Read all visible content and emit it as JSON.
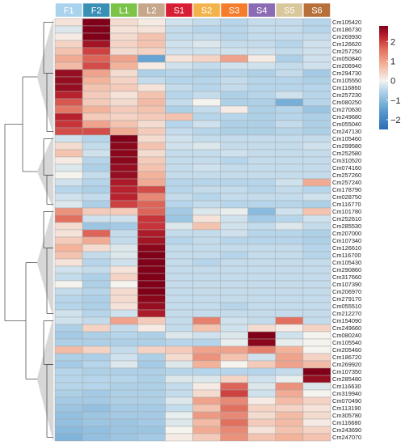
{
  "chart_data": {
    "type": "heatmap",
    "title": "",
    "columns": [
      "F1",
      "F2",
      "L1",
      "L2",
      "S1",
      "S2",
      "S3",
      "S4",
      "S5",
      "S6"
    ],
    "group_colors": [
      "#a9d3ec",
      "#3a8fb5",
      "#7cc34a",
      "#c7a78c",
      "#d81e35",
      "#f2b24c",
      "#f47c2a",
      "#8b6bb3",
      "#d8c79a",
      "#b8703a"
    ],
    "rows": [
      "Cm105420",
      "Cm186730",
      "Cm269930",
      "Cm126620",
      "Cm257250",
      "Cm050840",
      "Cm206940",
      "Cm294730",
      "Cm105550",
      "Cm116860",
      "Cm257230",
      "Cm080250",
      "Cm270630",
      "Cm249680",
      "Cm055040",
      "Cm247130",
      "Cm105460",
      "Cm299580",
      "Cm252580",
      "Cm310520",
      "Cm074160",
      "Cm257260",
      "Cm257240",
      "Cm178790",
      "Cm028750",
      "Cm116770",
      "Cm101780",
      "Cm252610",
      "Cm285530",
      "Cm207000",
      "Cm107340",
      "Cm126610",
      "Cm116700",
      "Cm105430",
      "Cm290860",
      "Cm317660",
      "Cm107390",
      "Cm206970",
      "Cm279170",
      "Cm055510",
      "Cm212270",
      "Cm154090",
      "Cm249660",
      "Cm080240",
      "Cm105540",
      "Cm205460",
      "Cm186720",
      "Cm269920",
      "Cm107350",
      "Cm285480",
      "Cm116630",
      "Cm319940",
      "Cm070490",
      "Cm113190",
      "Cm305780",
      "Cm116680",
      "Cm243690",
      "Cm247070"
    ],
    "values": [
      [
        0.2,
        2.8,
        0.3,
        0.1,
        -0.3,
        -0.4,
        -0.5,
        -0.4,
        -0.4,
        -0.5
      ],
      [
        -0.2,
        2.8,
        0.2,
        0.2,
        -0.4,
        -0.5,
        -0.5,
        -0.4,
        -0.4,
        -0.5
      ],
      [
        0.1,
        2.8,
        0.3,
        0.6,
        -0.4,
        -0.4,
        -0.5,
        -0.4,
        -0.4,
        -0.4
      ],
      [
        0.4,
        2.5,
        0.4,
        0.6,
        -0.3,
        -0.2,
        -0.4,
        -0.4,
        -0.5,
        -0.3
      ],
      [
        0.6,
        2.0,
        0.3,
        0.4,
        -0.3,
        -0.3,
        -0.3,
        -0.3,
        -0.4,
        -0.3
      ],
      [
        0.9,
        1.7,
        1.0,
        -1.4,
        0.2,
        0.4,
        1.0,
        0.1,
        -0.6,
        -0.3
      ],
      [
        0.7,
        1.9,
        0.8,
        0.1,
        -0.3,
        -0.4,
        -0.3,
        -0.3,
        -0.4,
        -0.3
      ],
      [
        2.6,
        1.0,
        0.3,
        -0.6,
        -0.5,
        -0.6,
        -0.5,
        -0.6,
        -0.4,
        -0.7
      ],
      [
        2.6,
        0.8,
        0.4,
        -0.4,
        -0.5,
        -0.5,
        -0.4,
        -0.5,
        -0.5,
        -0.6
      ],
      [
        2.6,
        0.6,
        0.5,
        0.2,
        -0.4,
        -0.5,
        -0.4,
        -0.5,
        -0.5,
        -0.5
      ],
      [
        2.3,
        0.5,
        0.2,
        0.6,
        -0.5,
        -0.4,
        -0.6,
        -0.5,
        -0.3,
        -0.5
      ],
      [
        1.8,
        0.5,
        0.3,
        0.7,
        -0.4,
        0.0,
        -0.6,
        -0.6,
        -1.2,
        -0.5
      ],
      [
        1.5,
        0.8,
        0.5,
        0.6,
        -0.6,
        -0.4,
        0.1,
        -0.6,
        -0.5,
        -0.8
      ],
      [
        2.3,
        0.5,
        0.4,
        0.5,
        0.6,
        -0.5,
        -0.5,
        -0.6,
        -0.5,
        -0.6
      ],
      [
        2.1,
        1.0,
        0.6,
        0.3,
        -0.5,
        -0.3,
        -0.6,
        -0.6,
        -0.4,
        -0.6
      ],
      [
        1.9,
        1.9,
        0.9,
        0.5,
        -0.4,
        -0.5,
        -0.6,
        -0.6,
        -0.5,
        -0.6
      ],
      [
        -0.3,
        -0.5,
        2.8,
        0.3,
        -0.3,
        -0.4,
        -0.4,
        -0.4,
        -0.4,
        -0.4
      ],
      [
        0.3,
        -0.4,
        2.7,
        0.6,
        -0.3,
        -0.2,
        -0.4,
        -0.4,
        -0.4,
        -0.3
      ],
      [
        0.6,
        -0.3,
        2.7,
        0.3,
        -0.4,
        -0.4,
        -0.3,
        -0.4,
        -0.4,
        -0.4
      ],
      [
        0.1,
        -0.5,
        2.7,
        0.5,
        -0.4,
        -0.4,
        -0.5,
        -0.4,
        -0.4,
        -0.4
      ],
      [
        -0.2,
        -0.6,
        2.6,
        0.6,
        -0.4,
        -0.3,
        -0.4,
        -0.4,
        -0.4,
        -0.4
      ],
      [
        0.0,
        -0.4,
        2.6,
        0.8,
        -0.4,
        -0.4,
        -0.4,
        -0.4,
        -0.4,
        -0.4
      ],
      [
        -0.3,
        -0.5,
        2.4,
        0.9,
        -0.5,
        -0.5,
        -0.5,
        -0.5,
        -0.3,
        0.9
      ],
      [
        -0.5,
        -0.6,
        2.3,
        1.9,
        -0.5,
        -0.4,
        -0.4,
        -0.5,
        -0.4,
        -0.5
      ],
      [
        -0.3,
        -0.4,
        2.3,
        1.3,
        -0.4,
        -0.5,
        -0.4,
        -0.4,
        -0.4,
        -0.3
      ],
      [
        -0.2,
        -0.6,
        2.0,
        1.7,
        -0.5,
        -0.4,
        -0.5,
        -0.5,
        -0.5,
        -0.6
      ],
      [
        1.2,
        0.5,
        0.5,
        1.7,
        -0.7,
        -0.2,
        -0.1,
        -1.0,
        -0.3,
        0.6
      ],
      [
        1.6,
        -0.3,
        -0.3,
        2.1,
        -0.8,
        0.2,
        -0.3,
        -0.7,
        -0.5,
        -0.3
      ],
      [
        0.3,
        -0.8,
        -0.7,
        2.1,
        -0.2,
        0.6,
        -0.3,
        -0.4,
        -0.2,
        -0.4
      ],
      [
        0.2,
        1.7,
        -0.4,
        2.4,
        -0.4,
        -0.4,
        -0.3,
        -0.5,
        -0.5,
        -0.6
      ],
      [
        0.5,
        0.9,
        -0.4,
        2.5,
        -0.5,
        -0.4,
        -0.5,
        -0.5,
        -0.5,
        -0.6
      ],
      [
        0.8,
        0.3,
        -0.2,
        2.7,
        -0.4,
        -0.4,
        -0.4,
        -0.4,
        -0.4,
        -0.5
      ],
      [
        0.6,
        -0.4,
        -0.2,
        2.8,
        -0.4,
        -0.4,
        -0.5,
        -0.4,
        -0.4,
        -0.5
      ],
      [
        0.2,
        -0.5,
        -0.3,
        2.8,
        -0.4,
        -0.5,
        -0.4,
        -0.4,
        -0.4,
        -0.4
      ],
      [
        -0.3,
        -0.4,
        0.2,
        2.8,
        -0.4,
        -0.4,
        -0.4,
        -0.4,
        -0.4,
        -0.4
      ],
      [
        -0.4,
        -0.6,
        0.4,
        2.8,
        -0.4,
        -0.4,
        -0.4,
        -0.4,
        -0.4,
        -0.4
      ],
      [
        0.0,
        -0.6,
        0.0,
        2.8,
        -0.4,
        -0.4,
        -0.4,
        -0.4,
        -0.4,
        -0.4
      ],
      [
        -0.4,
        -0.5,
        0.3,
        2.8,
        -0.4,
        -0.4,
        -0.4,
        -0.4,
        -0.4,
        -0.4
      ],
      [
        -0.5,
        -0.6,
        0.3,
        2.7,
        -0.4,
        -0.4,
        -0.4,
        -0.4,
        -0.4,
        -0.4
      ],
      [
        -0.5,
        -0.6,
        0.2,
        2.6,
        -0.4,
        -0.4,
        -0.5,
        -0.4,
        -0.4,
        -0.4
      ],
      [
        -0.3,
        -0.5,
        -0.3,
        2.4,
        -0.4,
        -0.4,
        -0.4,
        -0.4,
        -0.4,
        -0.4
      ],
      [
        -0.3,
        -0.4,
        1.0,
        0.5,
        -0.4,
        1.4,
        -0.3,
        -0.4,
        1.6,
        -0.4
      ],
      [
        -0.6,
        0.4,
        -0.4,
        0.1,
        -0.4,
        0.6,
        -0.3,
        0.3,
        0.1,
        0.4
      ],
      [
        -0.7,
        -0.6,
        -0.5,
        -0.6,
        -0.2,
        -0.3,
        -0.2,
        2.8,
        -0.3,
        0.0
      ],
      [
        -0.6,
        -0.6,
        -0.6,
        -0.6,
        -0.5,
        -0.5,
        -0.1,
        2.7,
        -0.1,
        0.0
      ],
      [
        0.7,
        0.4,
        -0.4,
        0.4,
        0.5,
        1.0,
        1.0,
        1.4,
        0.8,
        0.0
      ],
      [
        -0.6,
        -0.6,
        -0.3,
        -0.6,
        0.3,
        1.2,
        0.6,
        -0.3,
        1.0,
        0.4
      ],
      [
        -0.7,
        -0.5,
        -0.2,
        -0.7,
        -0.2,
        0.8,
        0.0,
        0.5,
        1.0,
        0.7
      ],
      [
        -0.5,
        -0.6,
        -0.6,
        -0.6,
        -0.5,
        -0.5,
        -0.5,
        -0.5,
        -0.4,
        2.8
      ],
      [
        -0.5,
        -0.5,
        -0.5,
        -0.6,
        -0.2,
        -0.2,
        0.4,
        -0.3,
        -0.1,
        2.6
      ],
      [
        -0.5,
        -0.5,
        -0.6,
        -0.6,
        -0.4,
        0.1,
        1.7,
        -0.2,
        1.2,
        -0.2
      ],
      [
        -0.6,
        -0.7,
        -0.6,
        -0.6,
        -0.4,
        0.3,
        2.0,
        -0.3,
        0.9,
        0.0
      ],
      [
        -0.7,
        -0.7,
        -0.6,
        -0.6,
        -0.2,
        1.0,
        1.3,
        0.1,
        0.7,
        0.4
      ],
      [
        -0.8,
        -0.9,
        -0.7,
        -0.7,
        -0.4,
        0.6,
        1.6,
        0.4,
        0.4,
        0.2
      ],
      [
        -0.9,
        -0.8,
        -0.7,
        -0.7,
        -0.1,
        1.1,
        1.3,
        0.3,
        0.7,
        0.3
      ],
      [
        -0.9,
        -0.8,
        -0.8,
        -0.7,
        -0.2,
        0.7,
        1.6,
        0.5,
        0.7,
        0.1
      ],
      [
        -1.0,
        -0.9,
        -0.8,
        -0.8,
        0.0,
        0.9,
        1.3,
        0.2,
        0.6,
        0.4
      ],
      [
        -1.1,
        -0.9,
        -0.8,
        -0.7,
        0.1,
        0.5,
        1.2,
        0.6,
        0.8,
        0.6
      ]
    ],
    "color_scale": {
      "stops": [
        {
          "value": -2.5,
          "color": "#2a6db5"
        },
        {
          "value": -1.5,
          "color": "#5e9ed0"
        },
        {
          "value": -0.5,
          "color": "#b6d5ea"
        },
        {
          "value": 0,
          "color": "#f5f3ee"
        },
        {
          "value": 0.8,
          "color": "#f3b39b"
        },
        {
          "value": 1.6,
          "color": "#e2705f"
        },
        {
          "value": 2.2,
          "color": "#c22932"
        },
        {
          "value": 2.8,
          "color": "#7f0018"
        }
      ],
      "range": [
        -2.5,
        2.8
      ],
      "ticks": [
        2,
        1,
        0,
        -1,
        -2
      ],
      "tick_labels": [
        "2",
        "1",
        "0",
        "−1",
        "−2"
      ]
    },
    "cluster_groups": [
      [
        0,
        15
      ],
      [
        16,
        25
      ],
      [
        26,
        40
      ],
      [
        41,
        57
      ]
    ]
  }
}
